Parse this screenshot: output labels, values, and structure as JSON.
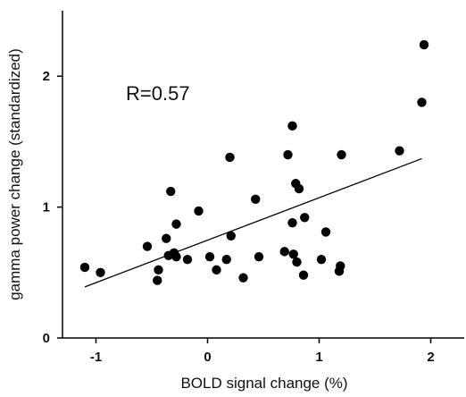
{
  "chart_data": {
    "type": "scatter",
    "title": "",
    "xlabel": "BOLD signal change (%)",
    "ylabel": "gamma power change (standardized)",
    "xlim": [
      -1.3,
      2.3
    ],
    "ylim": [
      0,
      2.5
    ],
    "xticks": [
      -1,
      0,
      1,
      2
    ],
    "yticks": [
      0,
      1,
      2
    ],
    "xtick_labels": [
      "-1",
      "0",
      "1",
      "2"
    ],
    "ytick_labels": [
      "0",
      "1",
      "2"
    ],
    "annotation": "R=0.57",
    "grid": false,
    "marker_color": "#000000",
    "fit_line": {
      "x": [
        -1.1,
        1.92
      ],
      "y": [
        0.39,
        1.37
      ]
    },
    "points": [
      {
        "x": -1.1,
        "y": 0.54
      },
      {
        "x": -0.96,
        "y": 0.5
      },
      {
        "x": -0.54,
        "y": 0.7
      },
      {
        "x": -0.45,
        "y": 0.44
      },
      {
        "x": -0.44,
        "y": 0.52
      },
      {
        "x": -0.37,
        "y": 0.76
      },
      {
        "x": -0.35,
        "y": 0.63
      },
      {
        "x": -0.33,
        "y": 1.12
      },
      {
        "x": -0.3,
        "y": 0.65
      },
      {
        "x": -0.28,
        "y": 0.62
      },
      {
        "x": -0.28,
        "y": 0.87
      },
      {
        "x": -0.18,
        "y": 0.6
      },
      {
        "x": -0.08,
        "y": 0.97
      },
      {
        "x": 0.02,
        "y": 0.62
      },
      {
        "x": 0.08,
        "y": 0.52
      },
      {
        "x": 0.17,
        "y": 0.6
      },
      {
        "x": 0.2,
        "y": 1.38
      },
      {
        "x": 0.21,
        "y": 0.78
      },
      {
        "x": 0.32,
        "y": 0.46
      },
      {
        "x": 0.43,
        "y": 1.06
      },
      {
        "x": 0.46,
        "y": 0.62
      },
      {
        "x": 0.69,
        "y": 0.66
      },
      {
        "x": 0.72,
        "y": 1.4
      },
      {
        "x": 0.76,
        "y": 1.62
      },
      {
        "x": 0.76,
        "y": 0.88
      },
      {
        "x": 0.77,
        "y": 0.64
      },
      {
        "x": 0.79,
        "y": 1.18
      },
      {
        "x": 0.8,
        "y": 0.58
      },
      {
        "x": 0.82,
        "y": 1.14
      },
      {
        "x": 0.86,
        "y": 0.48
      },
      {
        "x": 0.87,
        "y": 0.92
      },
      {
        "x": 1.02,
        "y": 0.6
      },
      {
        "x": 1.06,
        "y": 0.81
      },
      {
        "x": 1.18,
        "y": 0.51
      },
      {
        "x": 1.19,
        "y": 0.55
      },
      {
        "x": 1.2,
        "y": 1.4
      },
      {
        "x": 1.72,
        "y": 1.43
      },
      {
        "x": 1.92,
        "y": 1.8
      },
      {
        "x": 1.94,
        "y": 2.24
      }
    ]
  }
}
